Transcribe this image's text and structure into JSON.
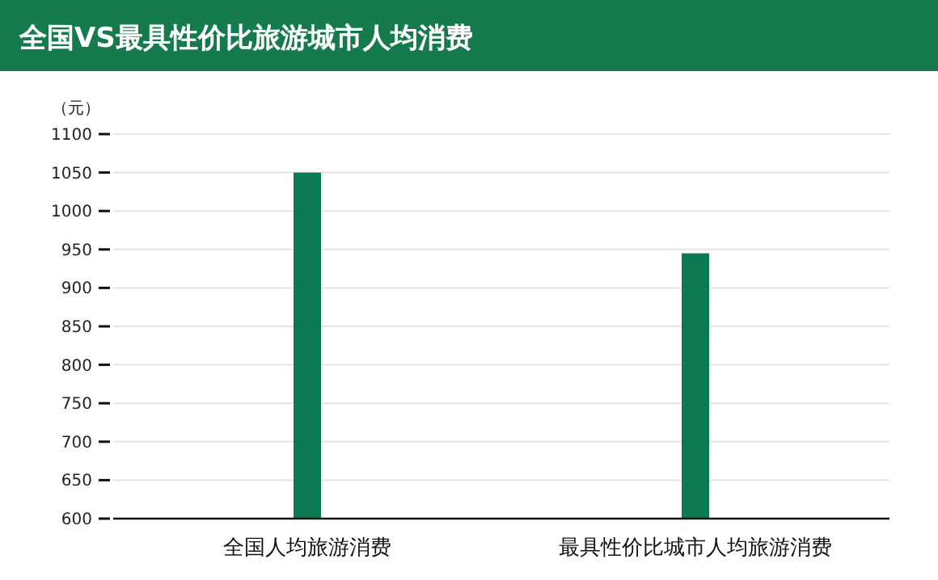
{
  "chart_data": {
    "type": "bar",
    "title": "全国VS最具性价比旅游城市人均消费",
    "ylabel": "（元）",
    "categories": [
      "全国人均旅游消费",
      "最具性价比城市人均旅游消费"
    ],
    "values": [
      1050,
      945
    ],
    "color": "#0b7a50",
    "ylim": [
      600,
      1100
    ],
    "yticks": [
      600,
      650,
      700,
      750,
      800,
      850,
      900,
      950,
      1000,
      1050,
      1100
    ],
    "grid": "y"
  }
}
